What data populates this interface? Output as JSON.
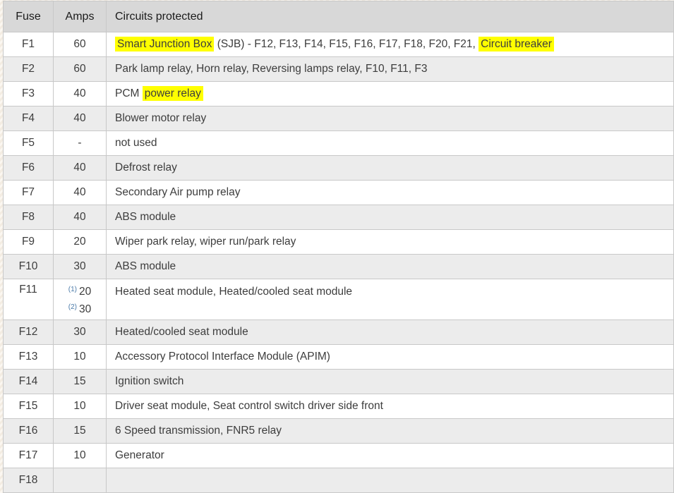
{
  "table": {
    "columns": [
      "Fuse",
      "Amps",
      "Circuits protected"
    ],
    "colors": {
      "header_bg": "#d8d8d8",
      "alt_row_bg": "#ececec",
      "border": "#c8c8c8",
      "highlight": "#ffff00",
      "footnote_blue": "#4a7aa8",
      "body_text": "#3d3d3d"
    },
    "rows": [
      {
        "fuse": "F1",
        "amps": "60",
        "circuits": [
          {
            "text": "Smart Junction Box",
            "highlight": true
          },
          {
            "text": " (SJB) - F12, F13, F14, F15, F16, F17, F18, F20, F21, ",
            "highlight": false
          },
          {
            "text": "Circuit breaker",
            "highlight": true
          }
        ]
      },
      {
        "fuse": "F2",
        "amps": "60",
        "circuits": [
          {
            "text": "Park lamp relay, Horn relay, Reversing lamps relay, F10, F11, F3",
            "highlight": false
          }
        ]
      },
      {
        "fuse": "F3",
        "amps": "40",
        "circuits": [
          {
            "text": "PCM ",
            "highlight": false
          },
          {
            "text": "power relay",
            "highlight": true
          }
        ]
      },
      {
        "fuse": "F4",
        "amps": "40",
        "circuits": [
          {
            "text": "Blower motor relay",
            "highlight": false
          }
        ]
      },
      {
        "fuse": "F5",
        "amps": "-",
        "circuits": [
          {
            "text": "not used",
            "highlight": false
          }
        ]
      },
      {
        "fuse": "F6",
        "amps": "40",
        "circuits": [
          {
            "text": "Defrost relay",
            "highlight": false
          }
        ]
      },
      {
        "fuse": "F7",
        "amps": "40",
        "circuits": [
          {
            "text": "Secondary Air pump relay",
            "highlight": false
          }
        ]
      },
      {
        "fuse": "F8",
        "amps": "40",
        "circuits": [
          {
            "text": "ABS module",
            "highlight": false
          }
        ]
      },
      {
        "fuse": "F9",
        "amps": "20",
        "circuits": [
          {
            "text": "Wiper park relay, wiper run/park relay",
            "highlight": false
          }
        ]
      },
      {
        "fuse": "F10",
        "amps": "30",
        "circuits": [
          {
            "text": "ABS module",
            "highlight": false
          }
        ]
      },
      {
        "fuse": "F11",
        "amps_lines": [
          {
            "ref": "(1)",
            "value": "20"
          },
          {
            "ref": "(2)",
            "value": "30"
          }
        ],
        "circuits": [
          {
            "text": "Heated seat module, Heated/cooled seat module",
            "highlight": false
          }
        ]
      },
      {
        "fuse": "F12",
        "amps": "30",
        "circuits": [
          {
            "text": "Heated/cooled seat module",
            "highlight": false
          }
        ]
      },
      {
        "fuse": "F13",
        "amps": "10",
        "circuits": [
          {
            "text": "Accessory Protocol Interface Module (APIM)",
            "highlight": false
          }
        ]
      },
      {
        "fuse": "F14",
        "amps": "15",
        "circuits": [
          {
            "text": "Ignition switch",
            "highlight": false
          }
        ]
      },
      {
        "fuse": "F15",
        "amps": "10",
        "circuits": [
          {
            "text": "Driver seat module, Seat control switch driver side front",
            "highlight": false
          }
        ]
      },
      {
        "fuse": "F16",
        "amps": "15",
        "circuits": [
          {
            "text": "6 Speed transmission, FNR5 relay",
            "highlight": false
          }
        ]
      },
      {
        "fuse": "F17",
        "amps": "10",
        "circuits": [
          {
            "text": "Generator",
            "highlight": false
          }
        ]
      },
      {
        "fuse": "F18",
        "amps": "",
        "circuits": []
      }
    ]
  }
}
